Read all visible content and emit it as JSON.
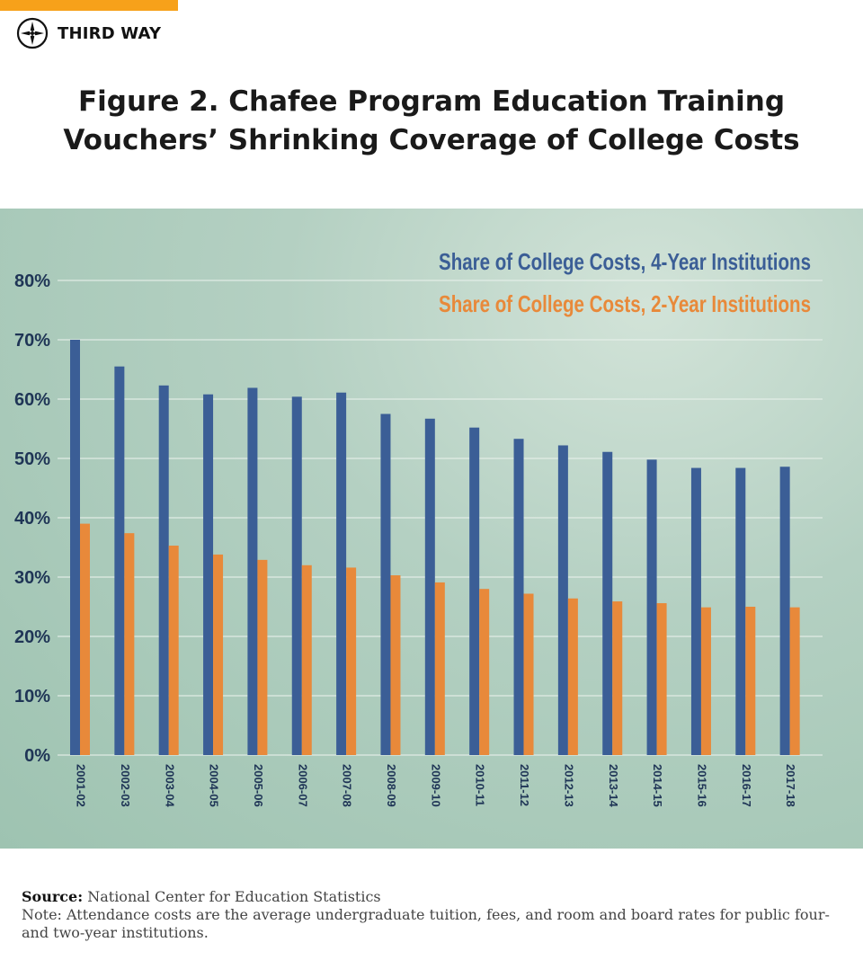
{
  "brand": {
    "name": "THIRD WAY"
  },
  "title": {
    "line1": "Figure 2. Chafee Program Education Training",
    "line2": "Vouchers’ Shrinking Coverage of College Costs"
  },
  "colors": {
    "accent": "#f7a11a",
    "series_4yr": "#3b5e96",
    "series_2yr": "#e8893a",
    "axis_text": "#1f3556",
    "gridline": "#e6efe9"
  },
  "chart_data": {
    "type": "bar",
    "title": "Figure 2. Chafee Program Education Training Vouchers’ Shrinking Coverage of College Costs",
    "xlabel": "",
    "ylabel": "",
    "ylim": [
      0,
      80
    ],
    "yticks": [
      "0%",
      "10%",
      "20%",
      "30%",
      "40%",
      "50%",
      "60%",
      "70%",
      "80%"
    ],
    "grid": true,
    "legend_position": "top-right",
    "categories": [
      "2001-02",
      "2002-03",
      "2003-04",
      "2004-05",
      "2005-06",
      "2006-07",
      "2007-08",
      "2008-09",
      "2009-10",
      "2010-11",
      "2011-12",
      "2012-13",
      "2013-14",
      "2014-15",
      "2015-16",
      "2016-17",
      "2017-18"
    ],
    "series": [
      {
        "name": "Share of College Costs, 4-Year Institutions",
        "values": [
          70,
          65.5,
          62.3,
          60.8,
          61.9,
          60.4,
          61.1,
          57.5,
          56.7,
          55.2,
          53.3,
          52.2,
          51.1,
          49.8,
          48.4,
          48.4,
          48.6
        ]
      },
      {
        "name": "Share of College Costs, 2-Year Institutions",
        "values": [
          39,
          37.4,
          35.3,
          33.8,
          32.9,
          32.0,
          31.6,
          30.3,
          29.1,
          28.0,
          27.2,
          26.4,
          25.9,
          25.6,
          24.9,
          25.0,
          24.9
        ]
      }
    ]
  },
  "source": {
    "label": "Source:",
    "text": "National Center for Education Statistics",
    "note": "Note: Attendance costs are the average undergraduate tuition, fees, and room and board rates for public four- and two-year institutions."
  }
}
